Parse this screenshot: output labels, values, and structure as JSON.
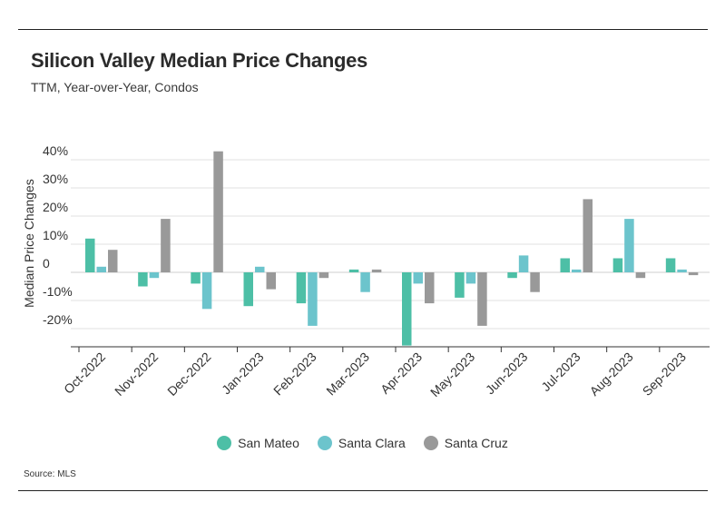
{
  "header": {
    "title": "Silicon Valley Median Price Changes",
    "subtitle": "TTM, Year-over-Year, Condos"
  },
  "source": "Source: MLS",
  "colors": {
    "San Mateo": "#4dbfa6",
    "Santa Clara": "#6cc4cc",
    "Santa Cruz": "#999999"
  },
  "chart_data": {
    "type": "bar",
    "ylabel": "Median Price Changes",
    "xlabel": "",
    "ylim": [
      -26,
      43
    ],
    "yticks": [
      40,
      30,
      20,
      10,
      0,
      -10,
      -20
    ],
    "ytick_labels": [
      "40%",
      "30%",
      "20%",
      "10%",
      "0",
      "-10%",
      "-20%"
    ],
    "grid": true,
    "legend_position": "bottom",
    "categories": [
      "Oct-2022",
      "Nov-2022",
      "Dec-2022",
      "Jan-2023",
      "Feb-2023",
      "Mar-2023",
      "Apr-2023",
      "May-2023",
      "Jun-2023",
      "Jul-2023",
      "Aug-2023",
      "Sep-2023"
    ],
    "series": [
      {
        "name": "San Mateo",
        "values": [
          12,
          -5,
          -4,
          -12,
          -11,
          1,
          -26,
          -9,
          -2,
          5,
          5,
          5
        ]
      },
      {
        "name": "Santa Clara",
        "values": [
          2,
          -2,
          -13,
          2,
          -19,
          -7,
          -4,
          -4,
          6,
          1,
          19,
          1
        ]
      },
      {
        "name": "Santa Cruz",
        "values": [
          8,
          19,
          43,
          -6,
          -2,
          1,
          -11,
          -19,
          -7,
          26,
          -2,
          -1
        ]
      }
    ]
  }
}
